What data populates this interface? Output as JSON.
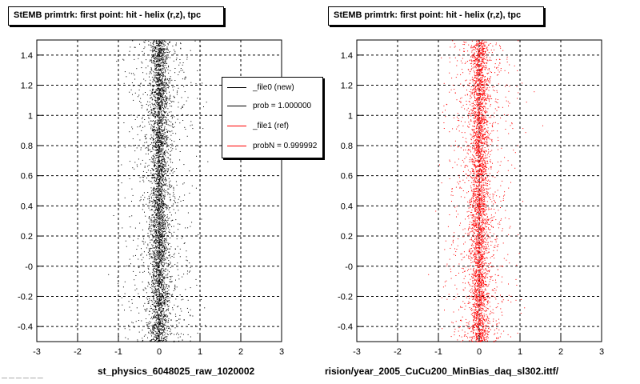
{
  "titles": {
    "left": "StEMB primtrk: first point: hit - helix (r,z), tpc",
    "right": "StEMB primtrk: first point: hit - helix (r,z), tpc"
  },
  "xlabels": {
    "left": "st_physics_6048025_raw_1020002",
    "right": "rision/year_2005_CuCu200_MinBias_daq_sl302.ittf/"
  },
  "legend": {
    "entries": [
      {
        "label": "_file0 (new)",
        "color": "#000000"
      },
      {
        "label": "prob = 1.000000",
        "color": "#000000"
      },
      {
        "label": "_file1 (ref)",
        "color": "#ff0000"
      },
      {
        "label": "probN = 0.999992",
        "color": "#ff0000"
      }
    ]
  },
  "footer": "— — — — — —",
  "chart_data": [
    {
      "type": "scatter",
      "title": "StEMB primtrk: first point: hit - helix (r,z), tpc",
      "xlabel": "st_physics_6048025_raw_1020002",
      "ylabel": "",
      "xlim": [
        -3,
        3
      ],
      "ylim": [
        -0.5,
        1.5
      ],
      "x_ticks": [
        "-3",
        "-2",
        "-1",
        "0",
        "1",
        "2",
        "3"
      ],
      "y_ticks": [
        "-0.4",
        "-0.2",
        "-0",
        "0.2",
        "0.4",
        "0.6",
        "0.8",
        "1",
        "1.2",
        "1.4"
      ],
      "grid": true,
      "series": [
        {
          "name": "_file0 (new)",
          "color": "#000000",
          "center_x": 0.0,
          "core_halfwidth": 0.15,
          "halo_halfwidth": 0.9,
          "y_range": [
            -0.5,
            1.5
          ]
        }
      ]
    },
    {
      "type": "scatter",
      "title": "StEMB primtrk: first point: hit - helix (r,z), tpc",
      "xlabel": "rision/year_2005_CuCu200_MinBias_daq_sl302.ittf/",
      "ylabel": "",
      "xlim": [
        -3,
        3
      ],
      "ylim": [
        -0.5,
        1.5
      ],
      "x_ticks": [
        "-3",
        "-2",
        "-1",
        "0",
        "1",
        "2",
        "3"
      ],
      "y_ticks": [
        "-0.4",
        "-0.2",
        "-0",
        "0.2",
        "0.4",
        "0.6",
        "0.8",
        "1",
        "1.2",
        "1.4"
      ],
      "grid": true,
      "series": [
        {
          "name": "_file1 (ref)",
          "color": "#ff0000",
          "center_x": 0.0,
          "core_halfwidth": 0.15,
          "halo_halfwidth": 0.9,
          "y_range": [
            -0.5,
            1.5
          ]
        }
      ]
    }
  ]
}
